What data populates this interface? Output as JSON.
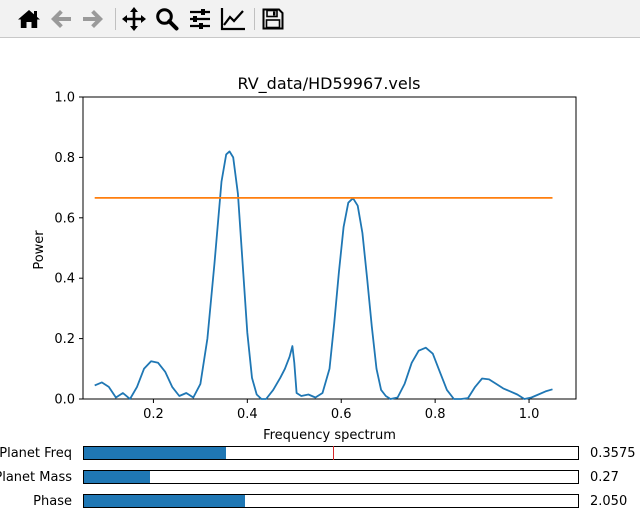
{
  "toolbar": {
    "buttons": [
      {
        "name": "home-icon",
        "label": "Home"
      },
      {
        "name": "back-arrow-icon",
        "label": "Back"
      },
      {
        "name": "forward-arrow-icon",
        "label": "Forward"
      },
      {
        "name": "pan-move-icon",
        "label": "Pan"
      },
      {
        "name": "zoom-magnifier-icon",
        "label": "Zoom"
      },
      {
        "name": "subplots-sliders-icon",
        "label": "Configure subplots"
      },
      {
        "name": "edit-axes-chart-icon",
        "label": "Edit axis"
      },
      {
        "name": "save-floppy-icon",
        "label": "Save"
      }
    ]
  },
  "chart_data": {
    "type": "line",
    "title": "RV_data/HD59967.vels",
    "xlabel": "Frequency spectrum",
    "ylabel": "Power",
    "xlim": [
      0.05,
      1.1
    ],
    "ylim": [
      0.0,
      1.0
    ],
    "xticks": [
      "0.2",
      "0.4",
      "0.6",
      "0.8",
      "1.0"
    ],
    "yticks": [
      "0.0",
      "0.2",
      "0.4",
      "0.6",
      "0.8",
      "1.0"
    ],
    "grid": false,
    "series": [
      {
        "color": "#1f77b4",
        "x": [
          0.075,
          0.09,
          0.105,
          0.12,
          0.135,
          0.15,
          0.165,
          0.18,
          0.195,
          0.21,
          0.225,
          0.24,
          0.255,
          0.27,
          0.285,
          0.3,
          0.315,
          0.33,
          0.345,
          0.355,
          0.362,
          0.37,
          0.38,
          0.39,
          0.4,
          0.41,
          0.42,
          0.43,
          0.44,
          0.455,
          0.47,
          0.48,
          0.49,
          0.496,
          0.5,
          0.505,
          0.515,
          0.53,
          0.545,
          0.56,
          0.575,
          0.585,
          0.595,
          0.605,
          0.615,
          0.625,
          0.635,
          0.645,
          0.655,
          0.665,
          0.675,
          0.685,
          0.695,
          0.705,
          0.72,
          0.735,
          0.75,
          0.765,
          0.78,
          0.795,
          0.81,
          0.825,
          0.84,
          0.855,
          0.87,
          0.885,
          0.9,
          0.915,
          0.93,
          0.945,
          0.96,
          0.975,
          0.99,
          1.005,
          1.02,
          1.035,
          1.05
        ],
        "y": [
          0.045,
          0.055,
          0.04,
          0.005,
          0.02,
          0.0,
          0.04,
          0.1,
          0.125,
          0.12,
          0.09,
          0.04,
          0.01,
          0.02,
          0.005,
          0.05,
          0.2,
          0.45,
          0.72,
          0.81,
          0.82,
          0.8,
          0.68,
          0.45,
          0.22,
          0.07,
          0.015,
          0.0,
          0.0,
          0.03,
          0.07,
          0.1,
          0.14,
          0.175,
          0.12,
          0.02,
          0.01,
          0.015,
          0.005,
          0.02,
          0.1,
          0.25,
          0.42,
          0.57,
          0.65,
          0.665,
          0.64,
          0.55,
          0.4,
          0.24,
          0.1,
          0.03,
          0.01,
          0.0,
          0.005,
          0.05,
          0.12,
          0.16,
          0.17,
          0.15,
          0.09,
          0.03,
          0.0,
          0.0,
          0.003,
          0.04,
          0.068,
          0.065,
          0.05,
          0.035,
          0.025,
          0.015,
          0.0,
          0.005,
          0.015,
          0.025,
          0.032
        ]
      },
      {
        "color": "#ff7f0e",
        "x": [
          0.075,
          1.05
        ],
        "y": [
          0.666,
          0.666
        ]
      }
    ]
  },
  "sliders": [
    {
      "label": "Planet Freq",
      "value": "0.3575",
      "fraction": 0.287,
      "marker_fraction": 0.505
    },
    {
      "label": "Planet Mass",
      "value": "0.27",
      "fraction": 0.133
    },
    {
      "label": "Phase",
      "value": "2.050",
      "fraction": 0.325
    }
  ]
}
